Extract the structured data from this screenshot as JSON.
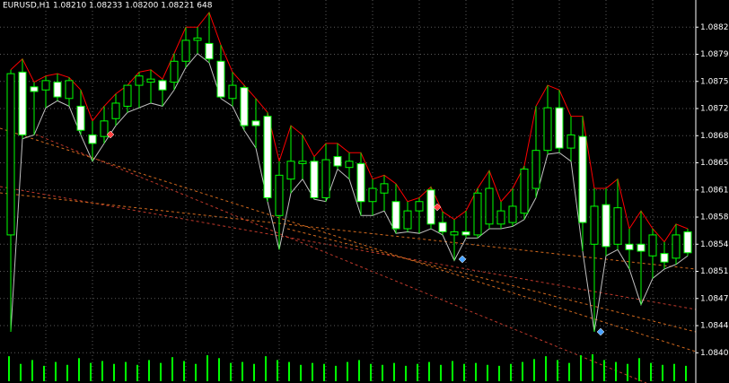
{
  "chart_data": {
    "type": "candlestick",
    "title": "EURUSD,H1  1.08210 1.08233 1.08200 1.08221  648",
    "open": [
      1.08557,
      1.08767,
      1.08748,
      1.08744,
      1.08754,
      1.08733,
      1.08723,
      1.08686,
      1.08684,
      1.08707,
      1.08723,
      1.0875,
      1.08754,
      1.08756,
      1.08754,
      1.08781,
      1.08808,
      1.08804,
      1.08781,
      1.08733,
      1.08747,
      1.08704,
      1.0871,
      1.08582,
      1.08629,
      1.08649,
      1.08652,
      1.08605,
      1.08658,
      1.08644,
      1.08649,
      1.086,
      1.08611,
      1.086,
      1.08565,
      1.08588,
      1.08615,
      1.08573,
      1.08557,
      1.08561,
      1.08557,
      1.08571,
      1.08571,
      1.08573,
      1.08585,
      1.08617,
      1.08666,
      1.08721,
      1.08669,
      1.08684,
      1.08545,
      1.08596,
      1.08545,
      1.08545,
      1.08545,
      1.0853,
      1.08533,
      1.08527,
      1.08561
    ],
    "high": [
      1.0877,
      1.08784,
      1.08754,
      1.08762,
      1.08765,
      1.0876,
      1.08744,
      1.08704,
      1.08723,
      1.08739,
      1.0875,
      1.08767,
      1.0877,
      1.08758,
      1.08791,
      1.08825,
      1.08825,
      1.08844,
      1.08802,
      1.08767,
      1.0875,
      1.08733,
      1.08715,
      1.08652,
      1.08698,
      1.08686,
      1.08658,
      1.08675,
      1.08675,
      1.08663,
      1.08663,
      1.08629,
      1.08634,
      1.08623,
      1.086,
      1.08605,
      1.08619,
      1.08587,
      1.08577,
      1.08588,
      1.08617,
      1.0864,
      1.086,
      1.08617,
      1.08646,
      1.08723,
      1.0875,
      1.08744,
      1.0871,
      1.0871,
      1.08617,
      1.08617,
      1.08629,
      1.08565,
      1.08588,
      1.08565,
      1.08548,
      1.08571,
      1.08565
    ],
    "low": [
      1.08432,
      1.08681,
      1.08686,
      1.08721,
      1.0873,
      1.08723,
      1.08686,
      1.08652,
      1.08675,
      1.08698,
      1.08715,
      1.08721,
      1.08727,
      1.08723,
      1.08744,
      1.08773,
      1.08791,
      1.08779,
      1.08733,
      1.08723,
      1.08692,
      1.08669,
      1.086,
      1.08538,
      1.08611,
      1.08629,
      1.08603,
      1.086,
      1.08642,
      1.08629,
      1.08582,
      1.08582,
      1.08588,
      1.08559,
      1.08561,
      1.08559,
      1.08565,
      1.08557,
      1.08524,
      1.08553,
      1.08553,
      1.08565,
      1.08565,
      1.08568,
      1.08577,
      1.08605,
      1.08661,
      1.08663,
      1.08652,
      1.08536,
      1.08432,
      1.0853,
      1.08538,
      1.08513,
      1.08467,
      1.08501,
      1.08513,
      1.08519,
      1.0853
    ],
    "close": [
      1.08765,
      1.08686,
      1.08742,
      1.08756,
      1.08735,
      1.08756,
      1.08692,
      1.08675,
      1.08704,
      1.08727,
      1.0875,
      1.08762,
      1.08758,
      1.08744,
      1.08781,
      1.08808,
      1.08811,
      1.08784,
      1.08735,
      1.0875,
      1.08698,
      1.08698,
      1.08605,
      1.08634,
      1.08652,
      1.08652,
      1.08605,
      1.08654,
      1.08646,
      1.08652,
      1.086,
      1.08617,
      1.08623,
      1.08565,
      1.08588,
      1.086,
      1.08571,
      1.08561,
      1.08561,
      1.08557,
      1.08611,
      1.08617,
      1.08588,
      1.08594,
      1.08642,
      1.08666,
      1.08721,
      1.08669,
      1.08686,
      1.08573,
      1.08594,
      1.08542,
      1.08592,
      1.08538,
      1.08536,
      1.08557,
      1.08522,
      1.08557,
      1.08534
    ],
    "volume": [
      26,
      18,
      22,
      16,
      20,
      17,
      24,
      19,
      21,
      18,
      20,
      17,
      22,
      19,
      25,
      21,
      18,
      27,
      24,
      19,
      20,
      18,
      26,
      22,
      20,
      17,
      19,
      18,
      16,
      20,
      22,
      18,
      17,
      19,
      16,
      18,
      20,
      17,
      21,
      18,
      19,
      17,
      16,
      18,
      20,
      23,
      26,
      22,
      19,
      27,
      28,
      22,
      20,
      18,
      24,
      19,
      17,
      18,
      16
    ],
    "ylim": [
      1.08366,
      1.0886
    ],
    "yticks": [
      1.08825,
      {
        "value": 1.0879,
        "label": "1.08790"
      },
      1.08755,
      1.0872,
      1.08685,
      {
        "value": 1.0865,
        "label": "1.08650"
      },
      1.08615,
      {
        "value": 1.0858,
        "label": "1.08580"
      },
      1.08545,
      {
        "value": 1.0851,
        "label": "1.08510"
      },
      1.08475,
      {
        "value": 1.0844,
        "label": "1.08440"
      },
      1.08405
    ],
    "grid": true,
    "up_color": "#000000",
    "down_color": "#ffffff",
    "candle_outline": "#00ff00",
    "upper_line_color": "#ff0000",
    "lower_line_color": "#c0c0c0",
    "volume_color": "#00ff00"
  }
}
